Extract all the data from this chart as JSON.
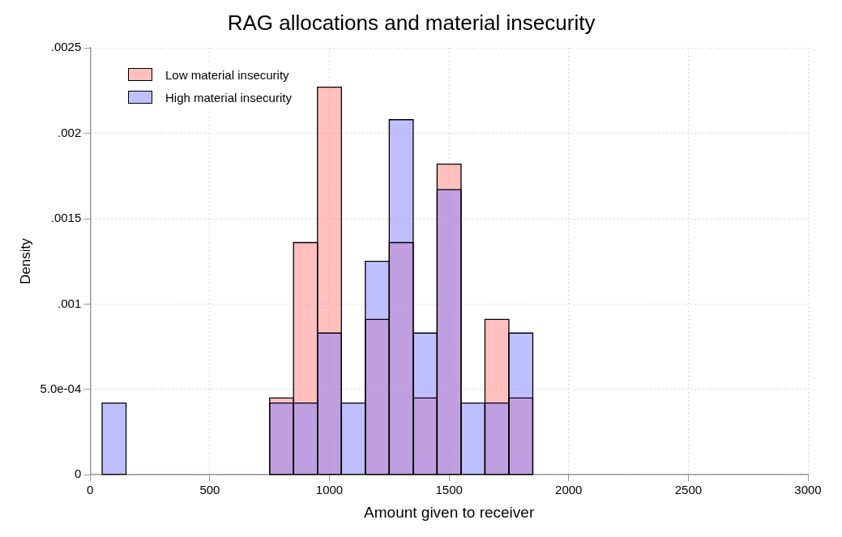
{
  "chart_data": {
    "type": "histogram",
    "title": "RAG allocations and material insecurity",
    "xlabel": "Amount given to receiver",
    "ylabel": "Density",
    "bins": [
      50,
      150,
      250,
      350,
      450,
      550,
      650,
      750,
      850,
      950,
      1050,
      1150,
      1250,
      1350,
      1450,
      1550,
      1650,
      1750,
      1850
    ],
    "series": [
      {
        "name": "Low material insecurity",
        "color": "#ff8080",
        "values": [
          0,
          0,
          0,
          0,
          0,
          0,
          0,
          0.00045,
          0.00136,
          0.00227,
          0,
          0.00091,
          0.00136,
          0.00045,
          0.00182,
          0,
          0.00091,
          0.00045
        ]
      },
      {
        "name": "High material insecurity",
        "color": "#8080ff",
        "values": [
          0.00042,
          0,
          0,
          0,
          0,
          0,
          0,
          0.00042,
          0.00042,
          0.00083,
          0.00042,
          0.00125,
          0.00208,
          0.00083,
          0.00167,
          0.00042,
          0.00042,
          0.00083
        ]
      }
    ],
    "xlim": [
      0,
      3000
    ],
    "xticks": [
      0,
      500,
      1000,
      1500,
      2000,
      2500,
      3000
    ],
    "ylim": [
      0,
      0.0025
    ],
    "yticks": [
      {
        "value": 0,
        "label": "0"
      },
      {
        "value": 0.0005,
        "label": "5.0e-04"
      },
      {
        "value": 0.001,
        "label": ".001"
      },
      {
        "value": 0.0015,
        "label": ".0015"
      },
      {
        "value": 0.002,
        "label": ".002"
      },
      {
        "value": 0.0025,
        "label": ".0025"
      }
    ],
    "grid": true,
    "legend": "top left"
  }
}
